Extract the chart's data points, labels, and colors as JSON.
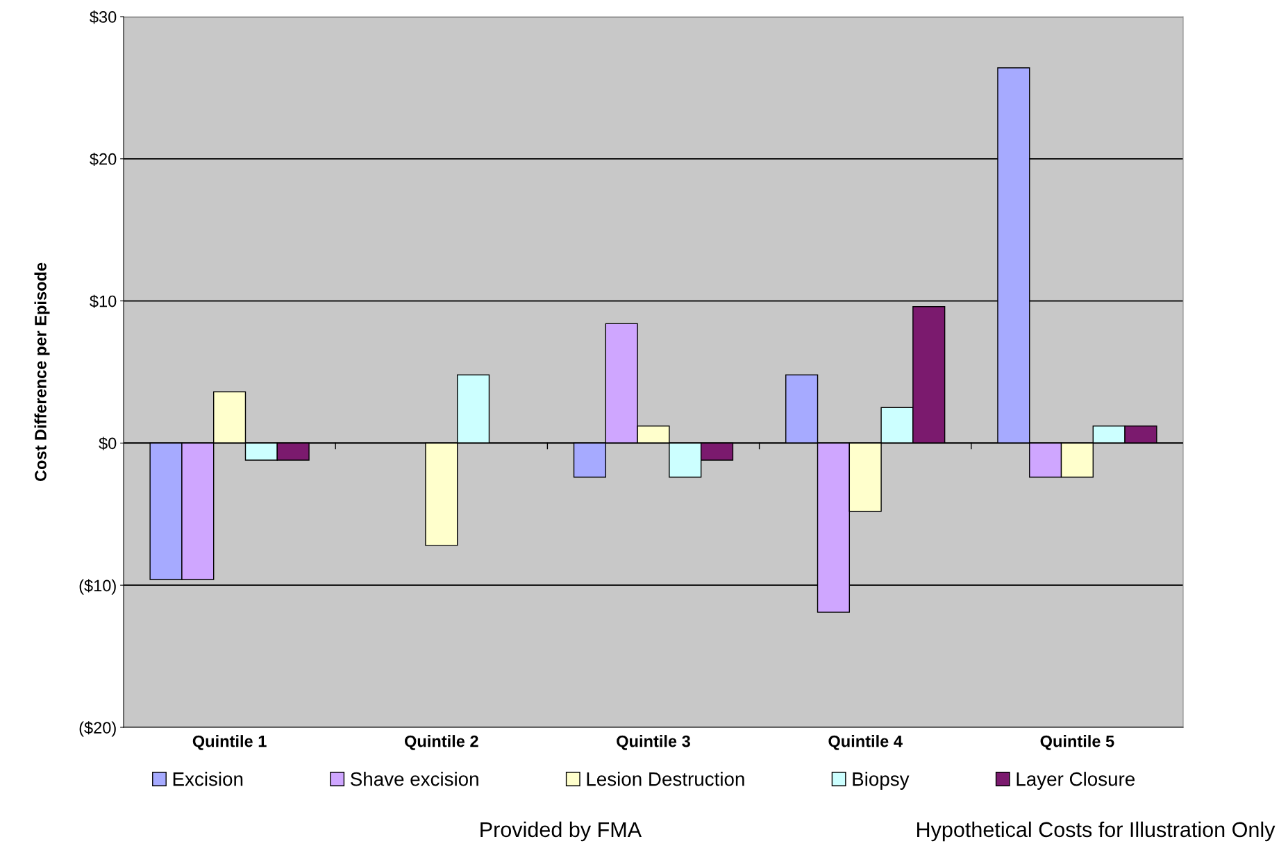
{
  "chart_data": {
    "type": "bar",
    "ylabel": "Cost Difference per Episode",
    "categories": [
      "Quintile 1",
      "Quintile 2",
      "Quintile 3",
      "Quintile 4",
      "Quintile 5"
    ],
    "series": [
      {
        "name": "Excision",
        "color": "#a6aaff",
        "values": [
          -9.6,
          null,
          -2.4,
          4.8,
          26.4
        ]
      },
      {
        "name": "Shave excision",
        "color": "#cfa6ff",
        "values": [
          -9.6,
          null,
          8.4,
          -11.9,
          -2.4
        ]
      },
      {
        "name": "Lesion Destruction",
        "color": "#ffffcc",
        "values": [
          3.6,
          -7.2,
          1.2,
          -4.8,
          -2.4
        ]
      },
      {
        "name": "Biopsy",
        "color": "#ccffff",
        "values": [
          -1.2,
          4.8,
          -2.4,
          2.5,
          1.2
        ]
      },
      {
        "name": "Layer Closure",
        "color": "#7b1a6e",
        "values": [
          -1.2,
          null,
          -1.2,
          9.6,
          1.2
        ]
      }
    ],
    "ylim": [
      -20,
      30
    ],
    "yticks": [
      {
        "value": -20,
        "label": "($20)"
      },
      {
        "value": -10,
        "label": "($10)"
      },
      {
        "value": 0,
        "label": "$0"
      },
      {
        "value": 10,
        "label": "$10"
      },
      {
        "value": 20,
        "label": "$20"
      },
      {
        "value": 30,
        "label": "$30"
      }
    ],
    "grid": "y",
    "legend": "bottom",
    "annotations": [
      "Provided by FMA",
      "Hypothetical Costs for Illustration Only"
    ]
  }
}
